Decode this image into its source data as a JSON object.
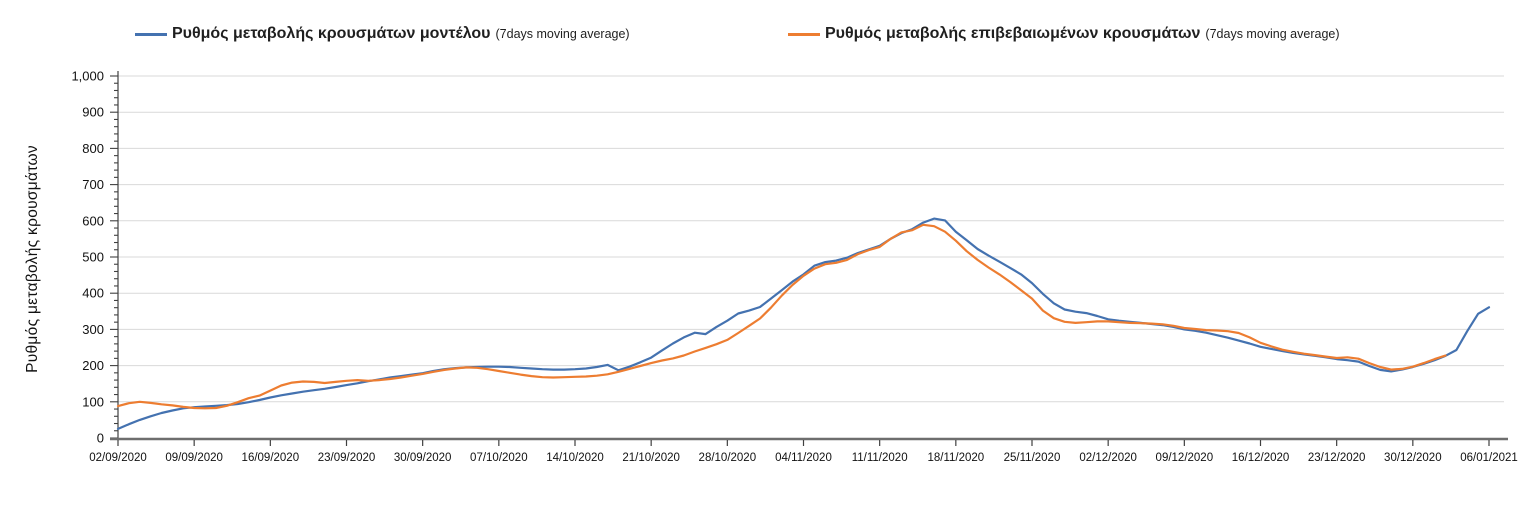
{
  "legend": {
    "items": [
      {
        "label": "Ρυθμός μεταβολής κρουσμάτων μοντέλου",
        "suffix": "(7days moving average)",
        "color": "#4472b0"
      },
      {
        "label": "Ρυθμός μεταβολής επιβεβαιωμένων κρουσμάτων",
        "suffix": "(7days moving average)",
        "color": "#ed7d31"
      }
    ]
  },
  "y_axis": {
    "title": "Ρυθμός μεταβολής κρουσμάτων"
  },
  "chart_data": {
    "type": "line",
    "title": "",
    "xlabel": "",
    "ylabel": "Ρυθμός μεταβολής κρουσμάτων",
    "ylim": [
      0,
      1000
    ],
    "grid": "horizontal",
    "legend_position": "top",
    "x_frequency": "daily",
    "x_start": "02/09/2020",
    "x_end": "06/01/2021",
    "x_tick_labels": [
      "02/09/2020",
      "09/09/2020",
      "16/09/2020",
      "23/09/2020",
      "30/09/2020",
      "07/10/2020",
      "14/10/2020",
      "21/10/2020",
      "28/10/2020",
      "04/11/2020",
      "11/11/2020",
      "18/11/2020",
      "25/11/2020",
      "02/12/2020",
      "09/12/2020",
      "16/12/2020",
      "23/12/2020",
      "30/12/2020",
      "06/01/2021"
    ],
    "y_tick_labels": [
      "0",
      "100",
      "200",
      "300",
      "400",
      "500",
      "600",
      "700",
      "800",
      "900",
      "1,000"
    ],
    "y_minor_tick_step": 20,
    "series": [
      {
        "name": "Ρυθμός μεταβολής κρουσμάτων μοντέλου (7days moving average)",
        "color": "#4472b0",
        "values": [
          25,
          38,
          50,
          60,
          69,
          76,
          82,
          85,
          87,
          89,
          91,
          94,
          99,
          105,
          112,
          118,
          123,
          128,
          132,
          136,
          141,
          146,
          151,
          157,
          162,
          167,
          171,
          175,
          179,
          185,
          190,
          193,
          195,
          196,
          197,
          197,
          196,
          194,
          192,
          190,
          189,
          189,
          190,
          192,
          196,
          202,
          187,
          197,
          209,
          222,
          242,
          261,
          278,
          291,
          287,
          307,
          324,
          344,
          352,
          362,
          385,
          408,
          432,
          452,
          476,
          486,
          490,
          498,
          511,
          521,
          531,
          550,
          566,
          577,
          595,
          606,
          601,
          570,
          546,
          522,
          504,
          487,
          470,
          452,
          428,
          398,
          372,
          355,
          349,
          345,
          337,
          328,
          324,
          321,
          318,
          315,
          312,
          307,
          300,
          296,
          291,
          284,
          277,
          269,
          261,
          252,
          246,
          240,
          235,
          231,
          227,
          223,
          218,
          215,
          211,
          199,
          188,
          184,
          189,
          196,
          205,
          215,
          227,
          243,
          295,
          343,
          361
        ]
      },
      {
        "name": "Ρυθμός μεταβολής επιβεβαιωμένων κρουσμάτων (7days moving average)",
        "color": "#ed7d31",
        "values": [
          88,
          96,
          100,
          97,
          93,
          90,
          86,
          83,
          82,
          83,
          89,
          99,
          110,
          117,
          131,
          145,
          153,
          156,
          155,
          152,
          155,
          158,
          160,
          158,
          160,
          163,
          167,
          172,
          177,
          183,
          188,
          192,
          195,
          194,
          190,
          185,
          180,
          175,
          171,
          168,
          167,
          168,
          169,
          170,
          172,
          176,
          183,
          191,
          199,
          207,
          214,
          220,
          228,
          239,
          249,
          259,
          271,
          290,
          310,
          330,
          360,
          393,
          423,
          448,
          468,
          480,
          484,
          492,
          508,
          519,
          528,
          550,
          568,
          574,
          589,
          585,
          570,
          545,
          516,
          492,
          471,
          452,
          431,
          408,
          385,
          352,
          331,
          321,
          318,
          320,
          322,
          322,
          320,
          318,
          317,
          316,
          314,
          310,
          304,
          301,
          298,
          297,
          295,
          290,
          278,
          263,
          253,
          244,
          238,
          233,
          229,
          225,
          221,
          223,
          219,
          207,
          196,
          189,
          191,
          197,
          207,
          218,
          228
        ]
      }
    ]
  }
}
